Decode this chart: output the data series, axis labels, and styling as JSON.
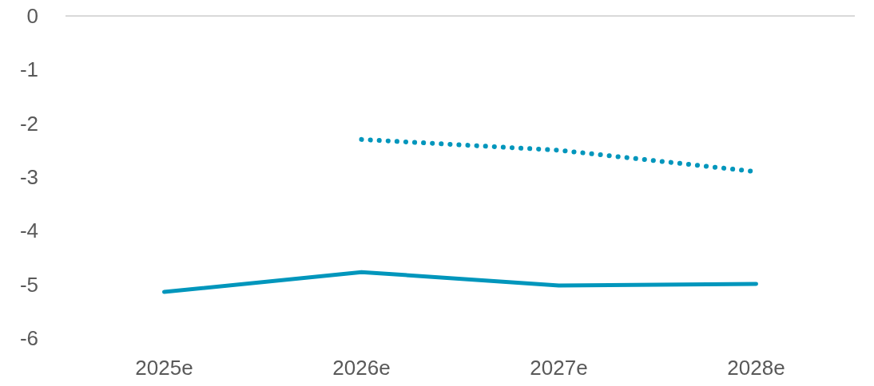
{
  "chart_data": {
    "type": "line",
    "categories": [
      "2025e",
      "2026e",
      "2027e",
      "2028e"
    ],
    "series": [
      {
        "color": "#0096bc",
        "line_style": "solid",
        "values": [
          -5.14,
          -4.77,
          -5.02,
          -4.99
        ]
      },
      {
        "color": "#0096bc",
        "line_style": "dotted",
        "values": [
          null,
          -2.3,
          -2.5,
          -2.9
        ]
      }
    ],
    "ylim": [
      -6,
      0
    ],
    "yticks": [
      0,
      -1,
      -2,
      -3,
      -4,
      -5,
      -6
    ],
    "grid": false,
    "marker": "none"
  }
}
